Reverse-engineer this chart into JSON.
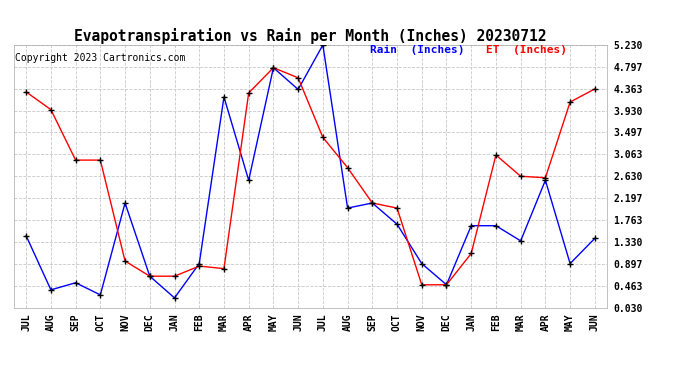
{
  "title": "Evapotranspiration vs Rain per Month (Inches) 20230712",
  "copyright": "Copyright 2023 Cartronics.com",
  "months": [
    "JUL",
    "AUG",
    "SEP",
    "OCT",
    "NOV",
    "DEC",
    "JAN",
    "FEB",
    "MAR",
    "APR",
    "MAY",
    "JUN",
    "JUL",
    "AUG",
    "SEP",
    "OCT",
    "NOV",
    "DEC",
    "JAN",
    "FEB",
    "MAR",
    "APR",
    "MAY",
    "JUN"
  ],
  "rain": [
    1.45,
    0.38,
    0.52,
    0.28,
    2.1,
    0.65,
    0.22,
    0.9,
    4.2,
    2.55,
    4.78,
    4.35,
    5.23,
    2.0,
    2.1,
    1.68,
    0.9,
    0.48,
    1.65,
    1.65,
    1.35,
    2.55,
    0.9,
    1.4
  ],
  "et": [
    4.3,
    3.95,
    2.95,
    2.95,
    0.95,
    0.65,
    0.65,
    0.85,
    0.8,
    4.28,
    4.78,
    4.58,
    3.4,
    2.8,
    2.1,
    2.0,
    0.48,
    0.48,
    1.1,
    3.05,
    2.63,
    2.6,
    4.1,
    4.36
  ],
  "rain_color": "#0000ff",
  "et_color": "#ff0000",
  "ymin": 0.03,
  "ymax": 5.23,
  "yticks": [
    0.03,
    0.463,
    0.897,
    1.33,
    1.763,
    2.197,
    2.63,
    3.063,
    3.497,
    3.93,
    4.363,
    4.797,
    5.23
  ],
  "background_color": "#ffffff",
  "grid_color": "#c8c8c8",
  "title_fontsize": 10.5,
  "copyright_fontsize": 7,
  "legend_fontsize": 8,
  "tick_fontsize": 7,
  "legend_rain": "Rain  (Inches)",
  "legend_et": "ET  (Inches)"
}
